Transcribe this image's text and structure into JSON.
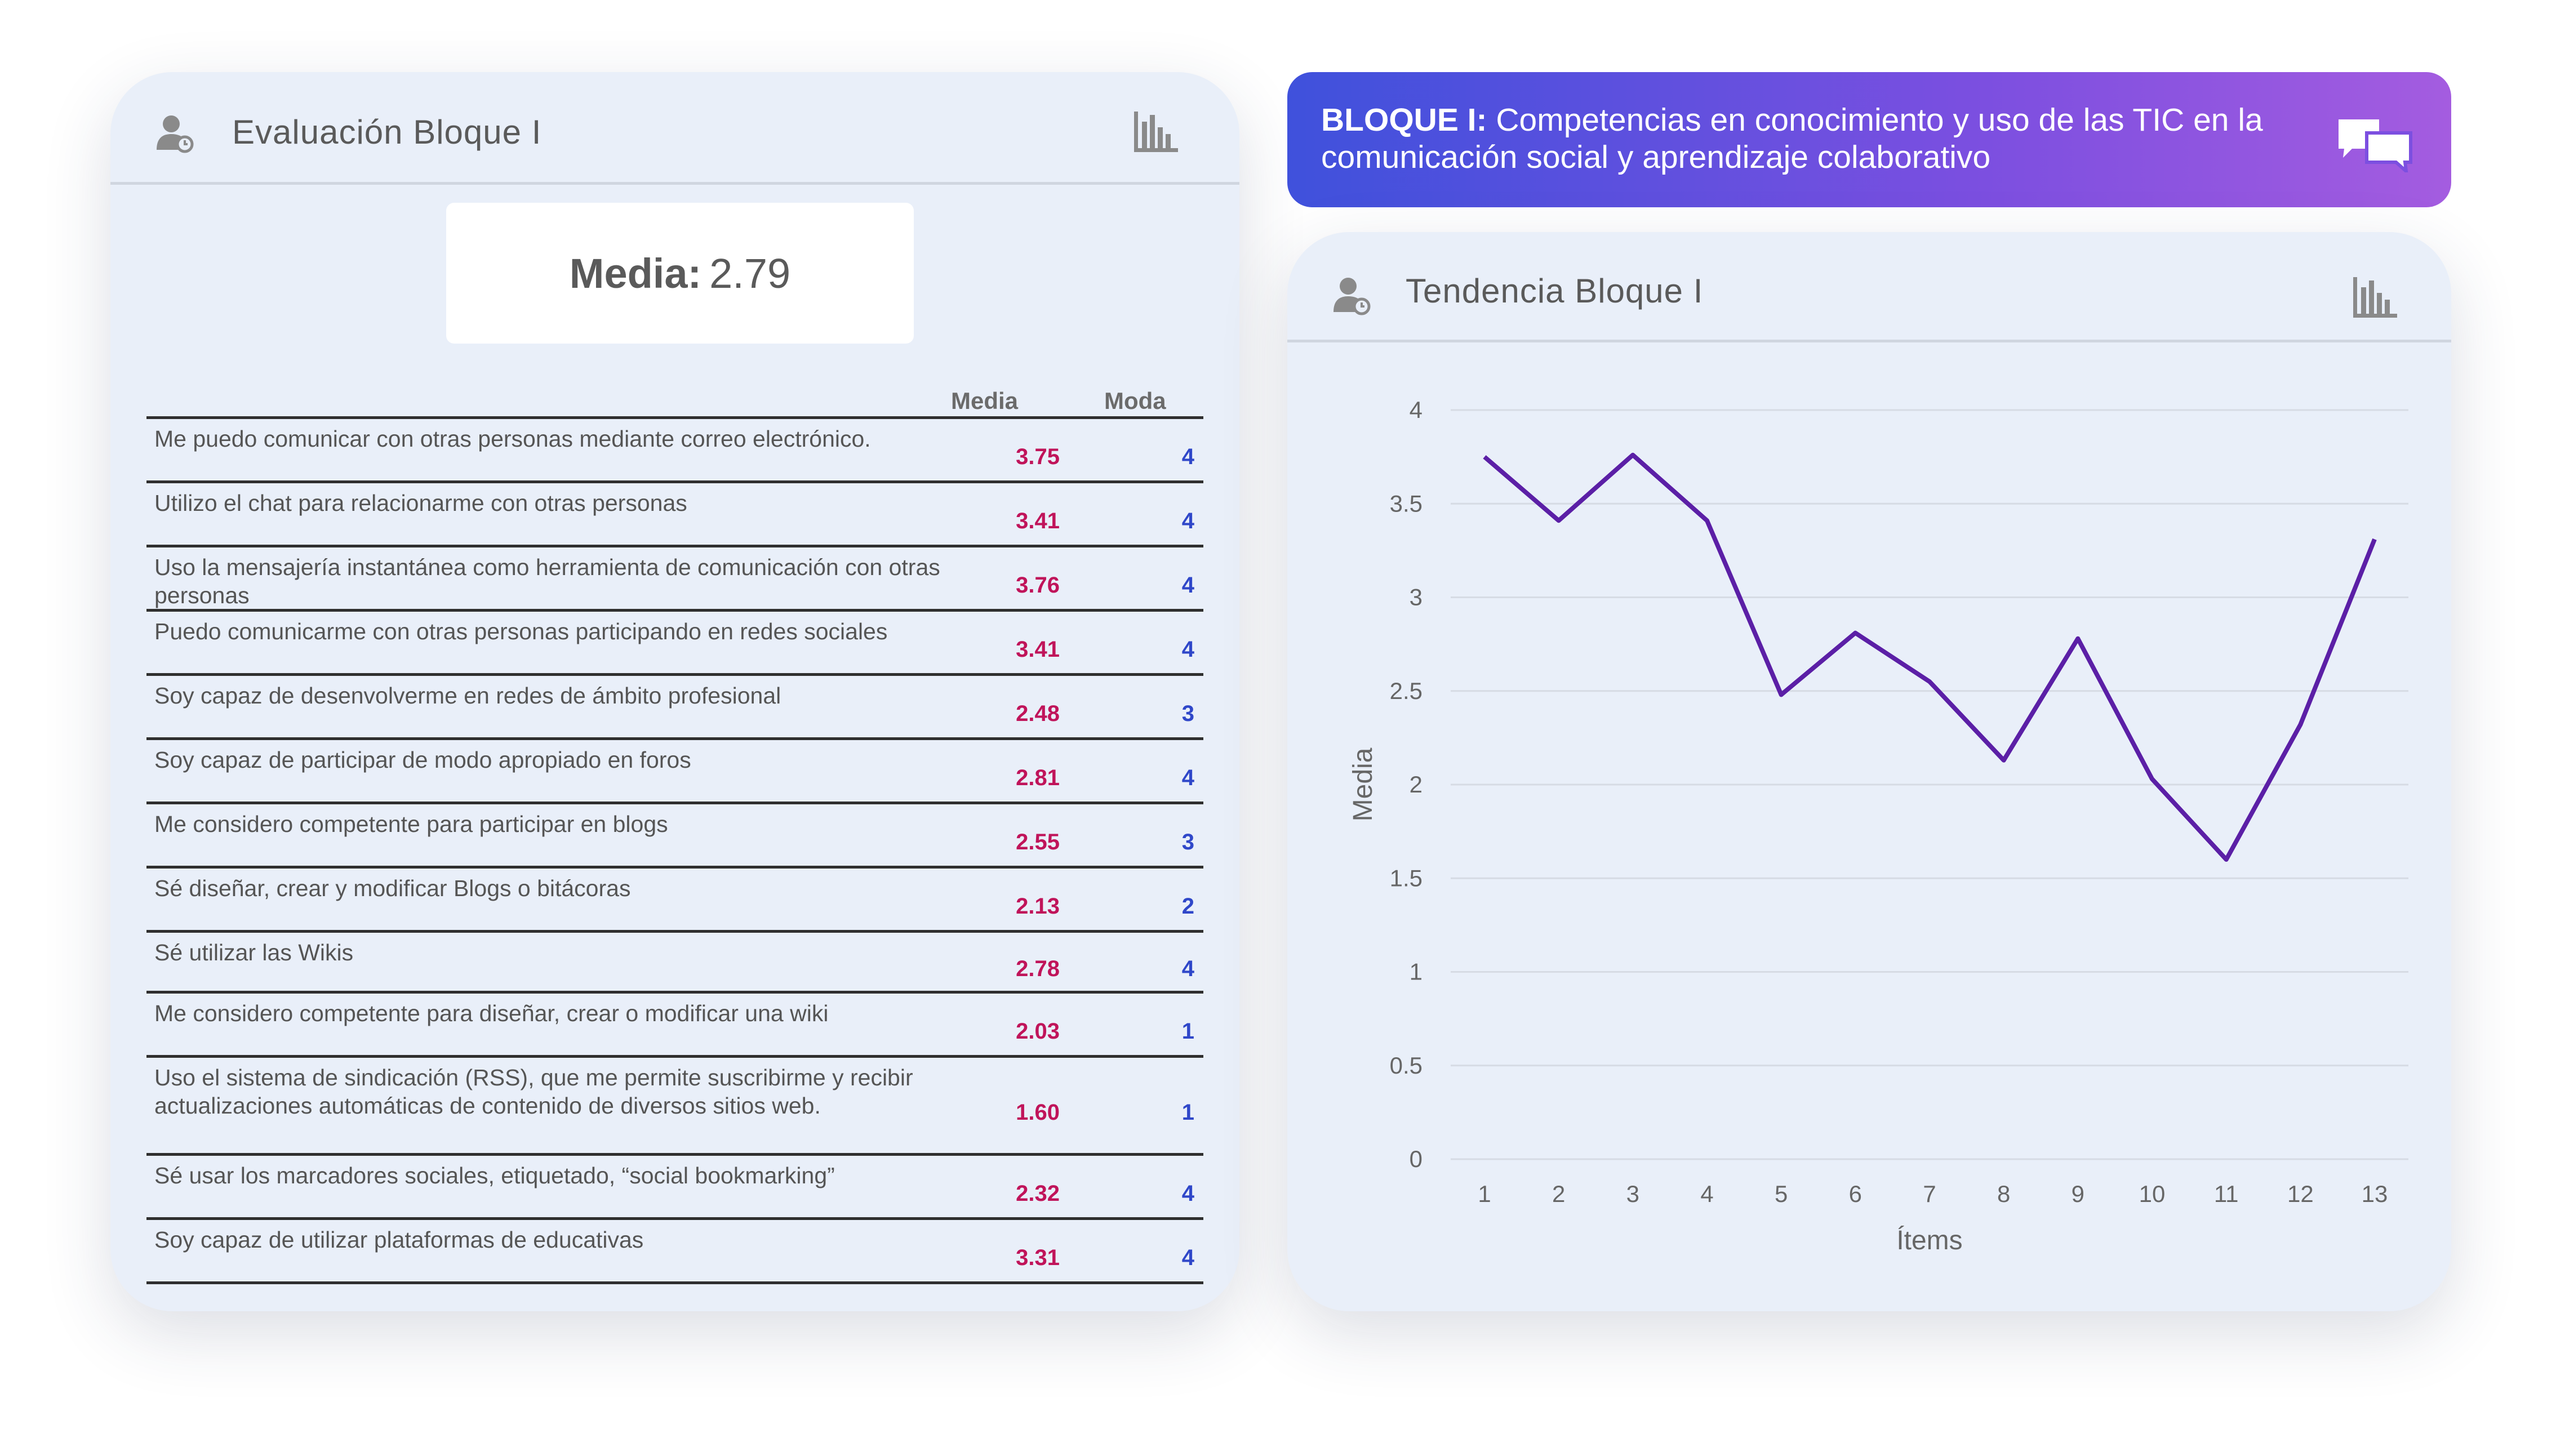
{
  "left_card": {
    "title": "Evaluación Bloque I",
    "media_label": "Media:",
    "media_value": "2.79",
    "columns": {
      "media": "Media",
      "moda": "Moda"
    },
    "rows": [
      {
        "text": "Me puedo comunicar con otras personas mediante correo electrónico.",
        "media": "3.75",
        "moda": "4"
      },
      {
        "text": "Utilizo el chat para relacionarme con otras personas",
        "media": "3.41",
        "moda": "4"
      },
      {
        "text": "Uso la mensajería instantánea como herramienta de comunicación con otras personas",
        "media": "3.76",
        "moda": "4"
      },
      {
        "text": "Puedo comunicarme con otras personas participando en redes sociales",
        "media": "3.41",
        "moda": "4"
      },
      {
        "text": "Soy capaz de desenvolverme en redes de ámbito profesional",
        "media": "2.48",
        "moda": "3"
      },
      {
        "text": "Soy capaz de participar de modo apropiado en foros",
        "media": "2.81",
        "moda": "4"
      },
      {
        "text": "Me considero competente para participar en blogs",
        "media": "2.55",
        "moda": "3"
      },
      {
        "text": "Sé diseñar, crear y modificar Blogs o bitácoras",
        "media": "2.13",
        "moda": "2"
      },
      {
        "text": "Sé utilizar las Wikis",
        "media": "2.78",
        "moda": "4"
      },
      {
        "text": "Me considero competente para diseñar, crear o modificar una wiki",
        "media": "2.03",
        "moda": "1"
      },
      {
        "text": "Uso el sistema de sindicación (RSS), que me permite suscribirme y recibir actualizaciones automáticas de contenido de diversos sitios web.",
        "media": "1.60",
        "moda": "1"
      },
      {
        "text": "Sé usar los marcadores sociales, etiquetado, “social bookmarking”",
        "media": "2.32",
        "moda": "4"
      },
      {
        "text": "Soy capaz de utilizar plataformas de educativas",
        "media": "3.31",
        "moda": "4"
      }
    ]
  },
  "banner": {
    "bold": "BLOQUE I:",
    "text": "Competencias en conocimiento y uso de las TIC en la comunicación social y aprendizaje colaborativo"
  },
  "right_card": {
    "title": "Tendencia Bloque I"
  },
  "colors": {
    "line": "#5b1fa6",
    "media_value": "#c0145a",
    "moda_value": "#2f47c9"
  },
  "icons": [
    "user-icon",
    "bar-chart-icon",
    "chat-bubbles-icon"
  ],
  "chart_data": {
    "type": "line",
    "xlabel": "Ítems",
    "ylabel": "Media",
    "x": [
      1,
      2,
      3,
      4,
      5,
      6,
      7,
      8,
      9,
      10,
      11,
      12,
      13
    ],
    "ylim": [
      0,
      4
    ],
    "yticks": [
      "0",
      "0.5",
      "1",
      "1.5",
      "2",
      "2.5",
      "3",
      "3.5",
      "4"
    ],
    "series": [
      {
        "values": [
          3.75,
          3.41,
          3.76,
          3.41,
          2.48,
          2.81,
          2.55,
          2.13,
          2.78,
          2.03,
          1.6,
          2.32,
          3.31
        ]
      }
    ],
    "grid": true
  }
}
